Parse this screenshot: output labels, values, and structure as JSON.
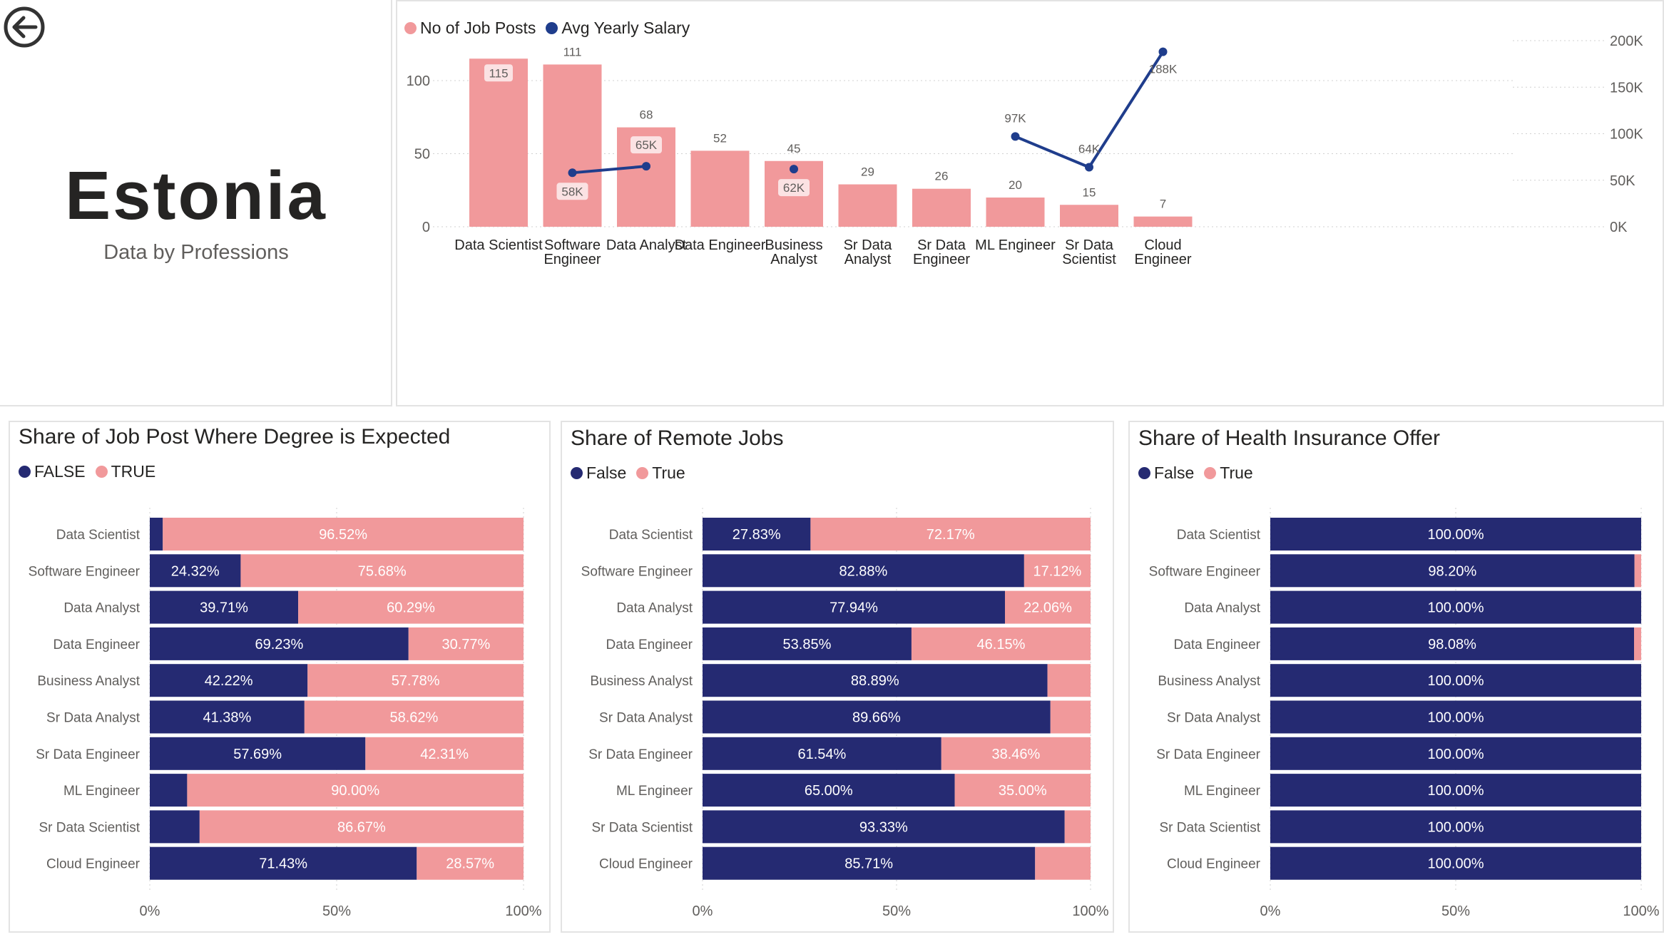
{
  "header": {
    "country": "Estonia",
    "subtitle": "Data by Professions",
    "back_icon": "back-arrow-icon"
  },
  "colors": {
    "pink": "#f1999b",
    "navy": "#252a72",
    "line_blue": "#1f3d8c",
    "label_bg": "#fbe2e3"
  },
  "combo": {
    "legend": [
      {
        "label": "No of Job Posts",
        "color": "#f1999b"
      },
      {
        "label": "Avg Yearly Salary",
        "color": "#1f3d8c"
      }
    ],
    "chart_data": {
      "type": "bar",
      "categories": [
        [
          "Data Scientist"
        ],
        [
          "Software",
          "Engineer"
        ],
        [
          "Data Analyst"
        ],
        [
          "Data Engineer"
        ],
        [
          "Business",
          "Analyst"
        ],
        [
          "Sr Data",
          "Analyst"
        ],
        [
          "Sr Data",
          "Engineer"
        ],
        [
          "ML Engineer"
        ],
        [
          "Sr Data",
          "Scientist"
        ],
        [
          "Cloud",
          "Engineer"
        ]
      ],
      "job_posts": [
        115,
        111,
        68,
        52,
        45,
        29,
        26,
        20,
        15,
        7
      ],
      "salary": [
        null,
        58000,
        65000,
        null,
        62000,
        null,
        null,
        97000,
        64000,
        188000
      ],
      "salary_labels": [
        "",
        "58K",
        "65K",
        "",
        "62K",
        "",
        "",
        "97K",
        "64K",
        "188K"
      ],
      "left_ticks": [
        "0",
        "50",
        "100"
      ],
      "left_tick_values": [
        0,
        50,
        100
      ],
      "right_ticks": [
        "0K",
        "50K",
        "100K",
        "150K",
        "200K"
      ],
      "right_tick_values": [
        0,
        50000,
        100000,
        150000,
        200000
      ],
      "ylim_left": [
        0,
        130
      ],
      "ylim_right": [
        0,
        200000
      ]
    }
  },
  "stacked_charts": [
    {
      "id": "degree",
      "title": "Share of Job Post Where Degree is Expected",
      "legend": [
        "FALSE",
        "TRUE"
      ],
      "chart_data": {
        "type": "bar",
        "categories": [
          "Data Scientist",
          "Software Engineer",
          "Data Analyst",
          "Data Engineer",
          "Business Analyst",
          "Sr Data Analyst",
          "Sr Data Engineer",
          "ML Engineer",
          "Sr Data Scientist",
          "Cloud Engineer"
        ],
        "false_values": [
          3.48,
          24.32,
          39.71,
          69.23,
          42.22,
          41.38,
          57.69,
          10.0,
          13.33,
          71.43
        ],
        "true_values": [
          96.52,
          75.68,
          60.29,
          30.77,
          57.78,
          58.62,
          42.31,
          90.0,
          86.67,
          28.57
        ],
        "false_labels": [
          "",
          "24.32%",
          "39.71%",
          "69.23%",
          "42.22%",
          "41.38%",
          "57.69%",
          "",
          "",
          "71.43%"
        ],
        "true_labels": [
          "96.52%",
          "75.68%",
          "60.29%",
          "30.77%",
          "57.78%",
          "58.62%",
          "42.31%",
          "90.00%",
          "86.67%",
          "28.57%"
        ],
        "x_ticks": [
          "0%",
          "50%",
          "100%"
        ],
        "xlim": [
          0,
          100
        ]
      }
    },
    {
      "id": "remote",
      "title": "Share of Remote Jobs",
      "legend": [
        "False",
        "True"
      ],
      "chart_data": {
        "type": "bar",
        "categories": [
          "Data Scientist",
          "Software Engineer",
          "Data Analyst",
          "Data Engineer",
          "Business Analyst",
          "Sr Data Analyst",
          "Sr Data Engineer",
          "ML Engineer",
          "Sr Data Scientist",
          "Cloud Engineer"
        ],
        "false_values": [
          27.83,
          82.88,
          77.94,
          53.85,
          88.89,
          89.66,
          61.54,
          65.0,
          93.33,
          85.71
        ],
        "true_values": [
          72.17,
          17.12,
          22.06,
          46.15,
          11.11,
          10.34,
          38.46,
          35.0,
          6.67,
          14.29
        ],
        "false_labels": [
          "27.83%",
          "82.88%",
          "77.94%",
          "53.85%",
          "88.89%",
          "89.66%",
          "61.54%",
          "65.00%",
          "93.33%",
          "85.71%"
        ],
        "true_labels": [
          "72.17%",
          "17.12%",
          "22.06%",
          "46.15%",
          "",
          "",
          "38.46%",
          "35.00%",
          "",
          ""
        ],
        "x_ticks": [
          "0%",
          "50%",
          "100%"
        ],
        "xlim": [
          0,
          100
        ]
      }
    },
    {
      "id": "health",
      "title": "Share of Health Insurance Offer",
      "legend": [
        "False",
        "True"
      ],
      "chart_data": {
        "type": "bar",
        "categories": [
          "Data Scientist",
          "Software Engineer",
          "Data Analyst",
          "Data Engineer",
          "Business Analyst",
          "Sr Data Analyst",
          "Sr Data Engineer",
          "ML Engineer",
          "Sr Data Scientist",
          "Cloud Engineer"
        ],
        "false_values": [
          100.0,
          98.2,
          100.0,
          98.08,
          100.0,
          100.0,
          100.0,
          100.0,
          100.0,
          100.0
        ],
        "true_values": [
          0,
          1.8,
          0,
          1.92,
          0,
          0,
          0,
          0,
          0,
          0
        ],
        "false_labels": [
          "100.00%",
          "98.20%",
          "100.00%",
          "98.08%",
          "100.00%",
          "100.00%",
          "100.00%",
          "100.00%",
          "100.00%",
          "100.00%"
        ],
        "true_labels": [
          "",
          "",
          "",
          "",
          "",
          "",
          "",
          "",
          "",
          ""
        ],
        "x_ticks": [
          "0%",
          "50%",
          "100%"
        ],
        "xlim": [
          0,
          100
        ]
      }
    }
  ]
}
